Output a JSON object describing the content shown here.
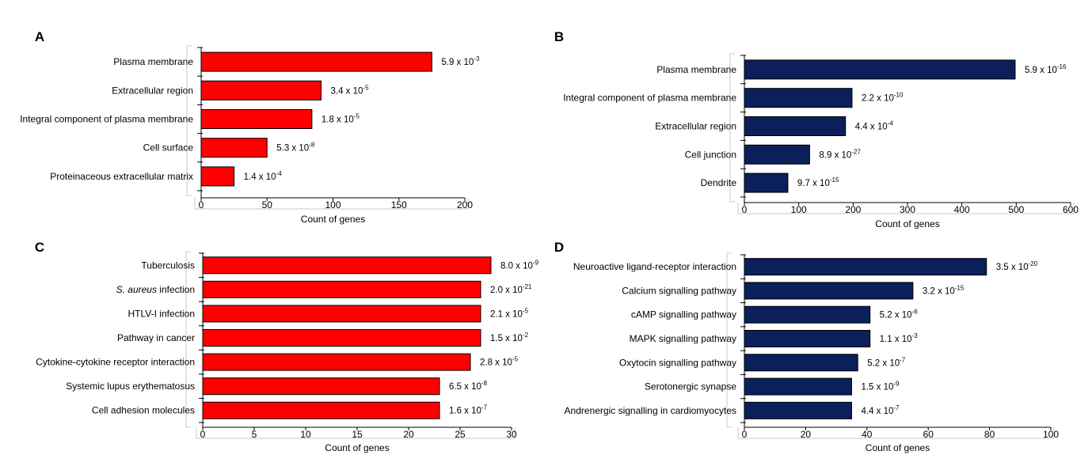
{
  "chart_data": [
    {
      "panel": "A",
      "type": "bar",
      "orientation": "horizontal",
      "categories": [
        "Plasma membrane",
        "Extracellular region",
        "Integral component of plasma membrane",
        "Cell surface",
        "Proteinaceous extracellular matrix"
      ],
      "values": [
        175,
        91,
        84,
        50,
        25
      ],
      "value_labels": [
        {
          "base": "5.9 x 10",
          "exp": "-3"
        },
        {
          "base": "3.4 x 10",
          "exp": "-5"
        },
        {
          "base": "1.8 x 10",
          "exp": "-5"
        },
        {
          "base": "5.3 x 10",
          "exp": "-8"
        },
        {
          "base": "1.4 x 10",
          "exp": "-4"
        }
      ],
      "xlabel": "Count of genes",
      "xlim": [
        0,
        200
      ],
      "xticks": [
        0,
        50,
        100,
        150,
        200
      ],
      "color": "#ff0000"
    },
    {
      "panel": "B",
      "type": "bar",
      "orientation": "horizontal",
      "categories": [
        "Plasma membrane",
        "Integral component of plasma membrane",
        "Extracellular region",
        "Cell junction",
        "Dendrite"
      ],
      "values": [
        498,
        198,
        186,
        120,
        80
      ],
      "value_labels": [
        {
          "base": "5.9 x 10",
          "exp": "-16"
        },
        {
          "base": "2.2 x 10",
          "exp": "-10"
        },
        {
          "base": "4.4 x 10",
          "exp": "-4"
        },
        {
          "base": "8.9 x 10",
          "exp": "-27"
        },
        {
          "base": "9.7 x 10",
          "exp": "-15"
        }
      ],
      "xlabel": "Count of genes",
      "xlim": [
        0,
        600
      ],
      "xticks": [
        0,
        100,
        200,
        300,
        400,
        500,
        600
      ],
      "color": "#0b1f5a"
    },
    {
      "panel": "C",
      "type": "bar",
      "orientation": "horizontal",
      "categories": [
        "Tuberculosis",
        "S. aureus infection",
        "HTLV-I infection",
        "Pathway in cancer",
        "Cytokine-cytokine receptor interaction",
        "Systemic lupus erythematosus",
        "Cell adhesion molecules"
      ],
      "values": [
        28,
        27,
        27,
        27,
        26,
        23,
        23
      ],
      "value_labels": [
        {
          "base": "8.0 x 10",
          "exp": "-9"
        },
        {
          "base": "2.0 x 10",
          "exp": "-21"
        },
        {
          "base": "2.1 x 10",
          "exp": "-5"
        },
        {
          "base": "1.5 x 10",
          "exp": "-2"
        },
        {
          "base": "2.8 x 10",
          "exp": "-5"
        },
        {
          "base": "6.5 x 10",
          "exp": "-8"
        },
        {
          "base": "1.6 x 10",
          "exp": "-7"
        }
      ],
      "xlabel": "Count of genes",
      "xlim": [
        0,
        30
      ],
      "xticks": [
        0,
        5,
        10,
        15,
        20,
        25,
        30
      ],
      "color": "#ff0000"
    },
    {
      "panel": "D",
      "type": "bar",
      "orientation": "horizontal",
      "categories": [
        "Neuroactive ligand-receptor interaction",
        "Calcium signalling pathway",
        "cAMP signalling pathway",
        "MAPK signalling pathway",
        "Oxytocin signalling pathway",
        "Serotonergic synapse",
        "Andrenergic signalling in cardiomyocytes"
      ],
      "values": [
        79,
        55,
        41,
        41,
        37,
        35,
        35
      ],
      "value_labels": [
        {
          "base": "3.5 x 10",
          "exp": "-20"
        },
        {
          "base": "3.2 x 10",
          "exp": "-15"
        },
        {
          "base": "5.2 x 10",
          "exp": "-6"
        },
        {
          "base": "1.1 x 10",
          "exp": "-3"
        },
        {
          "base": "5.2 x 10",
          "exp": "-7"
        },
        {
          "base": "1.5 x 10",
          "exp": "-9"
        },
        {
          "base": "4.4 x 10",
          "exp": "-7"
        }
      ],
      "xlabel": "Count of genes",
      "xlim": [
        0,
        100
      ],
      "xticks": [
        0,
        20,
        40,
        60,
        80,
        100
      ],
      "color": "#0b1f5a"
    }
  ]
}
